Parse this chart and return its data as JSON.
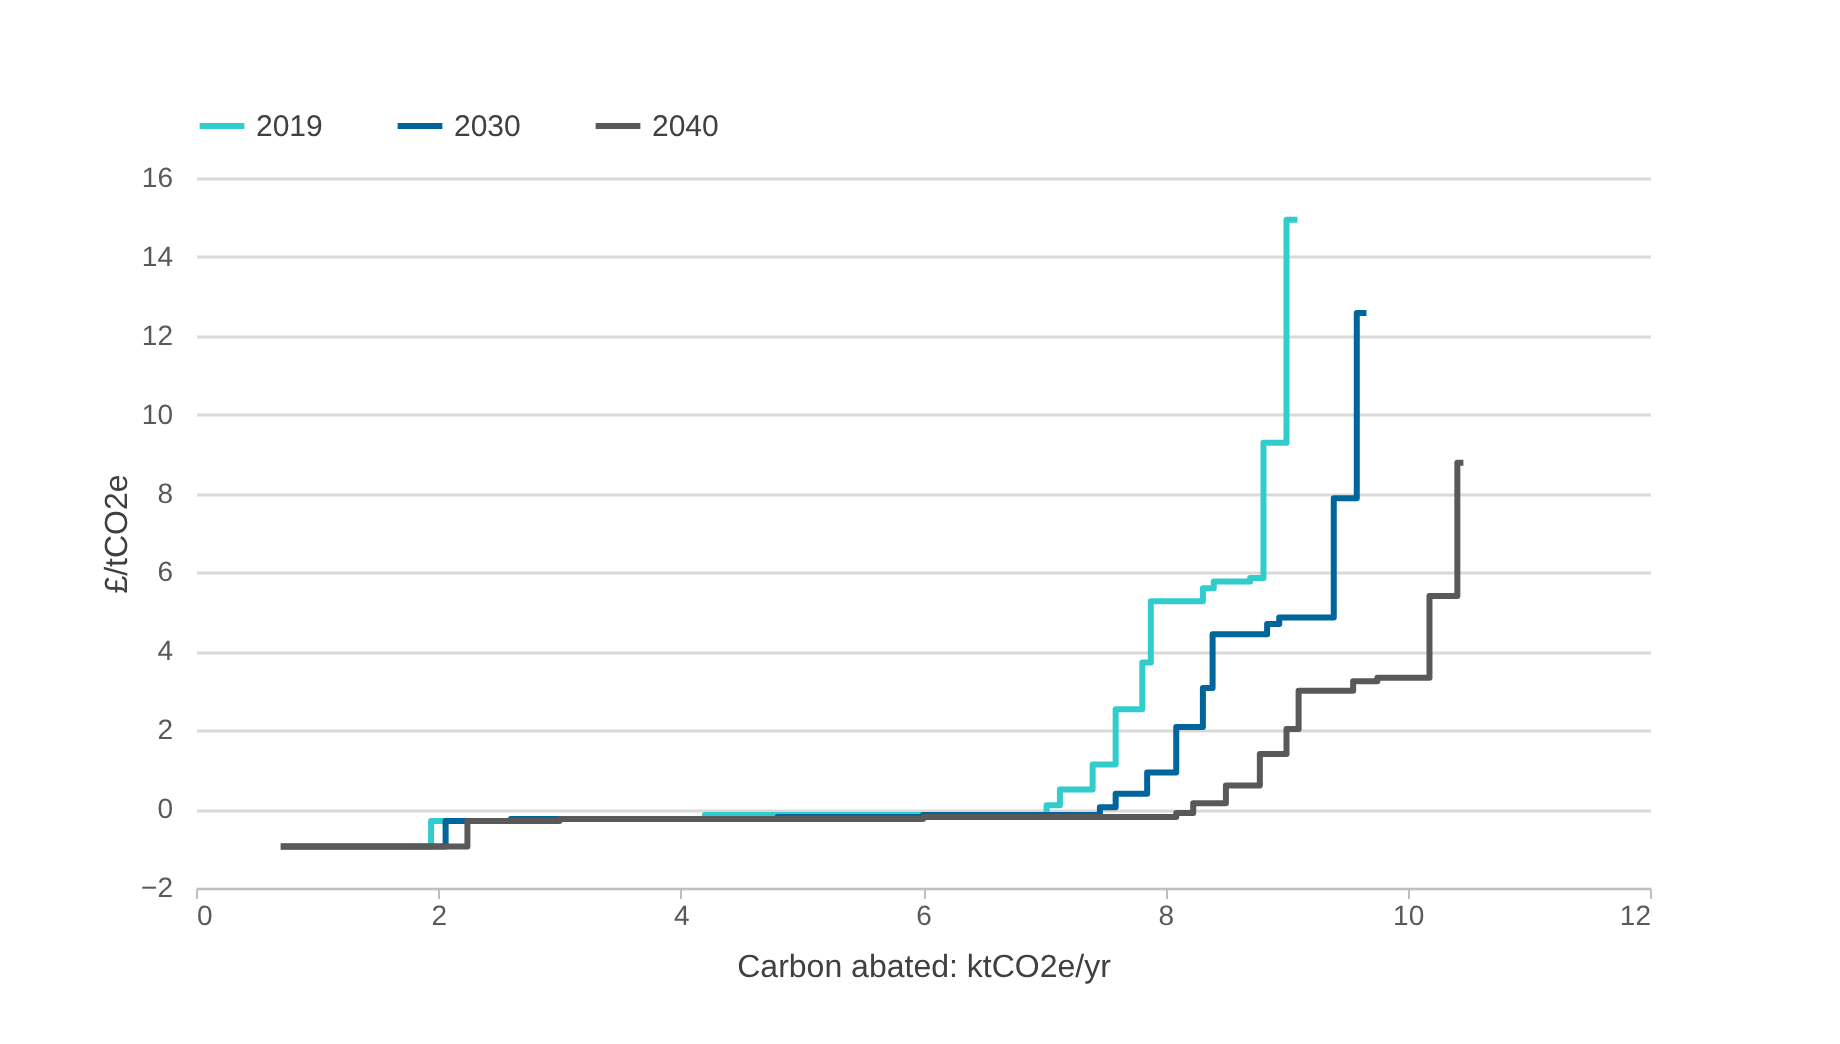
{
  "chart_data": {
    "type": "step",
    "xlabel": "Carbon abated: ktCO2e/yr",
    "ylabel": "£/tCO2e",
    "xlim": [
      0,
      12
    ],
    "xticks": [
      0,
      2,
      4,
      6,
      8,
      10,
      12
    ],
    "ylim": [
      -2,
      16
    ],
    "yticks": [
      -2,
      0,
      2,
      4,
      6,
      8,
      10,
      12,
      14,
      16
    ],
    "grid": "y",
    "legend": "top",
    "line_style": "solid",
    "marker": "none",
    "series": [
      {
        "name": "2019",
        "color": "#33cccc",
        "x": [
          0.7,
          1.94,
          2.6,
          4.2,
          7.02,
          7.13,
          7.4,
          7.59,
          7.81,
          7.88,
          8.31,
          8.4,
          8.7,
          8.81,
          9.0,
          9.09
        ],
        "values": [
          -0.95,
          -0.3,
          -0.25,
          -0.15,
          0.1,
          0.5,
          1.13,
          2.53,
          3.72,
          5.27,
          5.6,
          5.77,
          5.86,
          9.29,
          14.94,
          14.94
        ]
      },
      {
        "name": "2030",
        "color": "#00659a",
        "x": [
          0.7,
          2.06,
          2.6,
          4.8,
          6.0,
          7.46,
          7.59,
          7.85,
          8.09,
          8.31,
          8.39,
          8.84,
          8.94,
          9.39,
          9.58,
          9.66
        ],
        "values": [
          -0.95,
          -0.3,
          -0.25,
          -0.2,
          -0.15,
          0.05,
          0.39,
          0.93,
          2.08,
          3.07,
          4.43,
          4.69,
          4.86,
          7.88,
          12.58,
          12.58
        ]
      },
      {
        "name": "2040",
        "color": "#595959",
        "x": [
          0.7,
          2.24,
          3.0,
          6.0,
          8.09,
          8.23,
          8.5,
          8.78,
          9.0,
          9.1,
          9.55,
          9.75,
          10.18,
          10.41,
          10.46
        ],
        "values": [
          -0.95,
          -0.3,
          -0.25,
          -0.2,
          -0.1,
          0.15,
          0.6,
          1.4,
          2.03,
          3.0,
          3.24,
          3.33,
          5.4,
          8.78,
          8.78
        ]
      }
    ]
  }
}
